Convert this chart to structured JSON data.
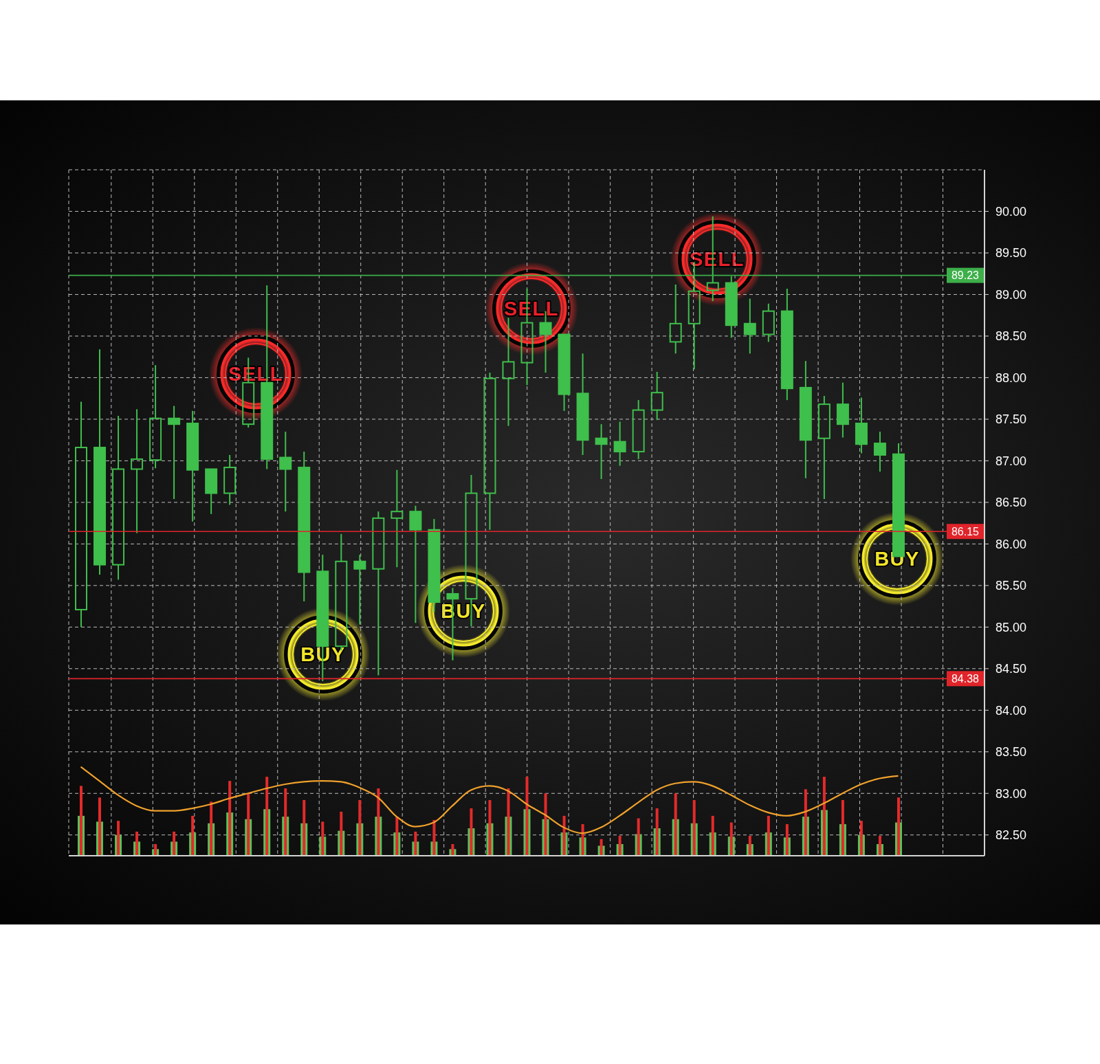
{
  "chart_data": {
    "type": "candlestick",
    "categories": [
      null,
      null,
      null,
      null,
      null,
      null,
      null,
      null,
      null,
      null,
      null,
      null,
      null,
      null,
      null,
      null,
      null,
      null,
      null,
      null,
      null,
      null,
      null,
      null,
      null,
      null,
      null,
      null,
      null,
      null,
      null,
      null,
      null,
      null,
      null,
      null,
      null,
      null,
      null,
      null,
      null,
      null,
      null,
      null,
      null
    ],
    "ohlc": [
      [
        85.21,
        87.71,
        85.0,
        87.16
      ],
      [
        87.16,
        88.34,
        85.63,
        85.75
      ],
      [
        85.75,
        87.54,
        85.57,
        86.9
      ],
      [
        86.9,
        87.62,
        86.13,
        87.02
      ],
      [
        87.01,
        88.15,
        86.91,
        87.51
      ],
      [
        87.51,
        87.66,
        86.54,
        87.44
      ],
      [
        87.45,
        87.6,
        86.27,
        86.89
      ],
      [
        86.9,
        86.9,
        86.36,
        86.61
      ],
      [
        86.61,
        87.07,
        86.47,
        86.92
      ],
      [
        87.44,
        88.24,
        87.4,
        87.94
      ],
      [
        87.94,
        89.11,
        86.9,
        87.02
      ],
      [
        87.04,
        87.35,
        86.39,
        86.9
      ],
      [
        86.92,
        87.11,
        85.31,
        85.66
      ],
      [
        85.67,
        85.87,
        84.35,
        84.77
      ],
      [
        84.77,
        86.12,
        84.72,
        85.79
      ],
      [
        85.79,
        85.87,
        85.03,
        85.7
      ],
      [
        85.7,
        86.39,
        84.42,
        86.31
      ],
      [
        86.31,
        86.89,
        85.72,
        86.39
      ],
      [
        86.39,
        86.46,
        85.05,
        86.17
      ],
      [
        86.17,
        86.3,
        85.18,
        85.3
      ],
      [
        85.4,
        85.47,
        84.6,
        85.34
      ],
      [
        85.34,
        86.83,
        85.01,
        86.61
      ],
      [
        86.61,
        88.06,
        86.17,
        87.99
      ],
      [
        87.99,
        88.72,
        87.42,
        88.19
      ],
      [
        88.18,
        89.07,
        87.91,
        88.66
      ],
      [
        88.66,
        88.8,
        88.06,
        88.52
      ],
      [
        88.52,
        88.52,
        87.6,
        87.8
      ],
      [
        87.81,
        88.29,
        87.07,
        87.25
      ],
      [
        87.27,
        87.44,
        86.78,
        87.2
      ],
      [
        87.23,
        87.47,
        86.94,
        87.11
      ],
      [
        87.11,
        87.73,
        87.02,
        87.61
      ],
      [
        87.61,
        88.07,
        87.49,
        87.82
      ],
      [
        88.43,
        89.12,
        88.29,
        88.65
      ],
      [
        88.65,
        89.39,
        88.1,
        89.04
      ],
      [
        89.05,
        89.94,
        88.92,
        89.14
      ],
      [
        89.14,
        89.22,
        88.48,
        88.63
      ],
      [
        88.65,
        88.95,
        88.29,
        88.52
      ],
      [
        88.52,
        88.89,
        88.43,
        88.8
      ],
      [
        88.8,
        89.07,
        87.73,
        87.87
      ],
      [
        87.88,
        88.2,
        86.79,
        87.25
      ],
      [
        87.27,
        87.78,
        86.54,
        87.68
      ],
      [
        87.68,
        87.94,
        87.28,
        87.44
      ],
      [
        87.45,
        87.76,
        87.09,
        87.2
      ],
      [
        87.21,
        87.35,
        86.87,
        87.07
      ],
      [
        87.08,
        87.21,
        85.85,
        85.85
      ]
    ],
    "color": "#3fbf4c",
    "series": [
      {
        "type": "bar",
        "color": "#5cc05a",
        "values": [
          82.73,
          82.66,
          82.5,
          82.42,
          82.33,
          82.42,
          82.53,
          82.64,
          82.77,
          82.69,
          82.81,
          82.72,
          82.64,
          82.48,
          82.55,
          82.64,
          82.72,
          82.53,
          82.42,
          82.42,
          82.33,
          82.58,
          82.64,
          82.72,
          82.81,
          82.69,
          82.53,
          82.47,
          82.37,
          82.39,
          82.51,
          82.58,
          82.69,
          82.64,
          82.53,
          82.48,
          82.39,
          82.53,
          82.47,
          82.72,
          82.8,
          82.63,
          82.5,
          82.39,
          82.65
        ]
      },
      {
        "type": "bar",
        "color": "#e42a2a",
        "values": [
          83.09,
          82.95,
          82.67,
          82.54,
          82.39,
          82.54,
          82.73,
          82.9,
          83.15,
          83.0,
          83.2,
          83.06,
          82.92,
          82.66,
          82.78,
          82.92,
          83.06,
          82.72,
          82.54,
          82.68,
          82.39,
          82.82,
          82.92,
          83.06,
          83.2,
          83.0,
          82.73,
          82.63,
          82.45,
          82.49,
          82.7,
          82.82,
          83.0,
          82.92,
          82.73,
          82.65,
          82.49,
          82.73,
          82.63,
          83.05,
          83.2,
          82.92,
          82.67,
          82.49,
          82.95
        ]
      },
      {
        "type": "line",
        "color": "#f0a12c",
        "values": [
          83.32,
          83.15,
          82.98,
          82.85,
          82.79,
          82.79,
          82.82,
          82.87,
          82.94,
          83.0,
          83.06,
          83.11,
          83.14,
          83.15,
          83.14,
          83.07,
          82.95,
          82.72,
          82.6,
          82.65,
          82.85,
          83.04,
          83.09,
          83.03,
          82.87,
          82.74,
          82.59,
          82.52,
          82.59,
          82.73,
          82.89,
          83.04,
          83.12,
          83.14,
          83.09,
          82.98,
          82.86,
          82.77,
          82.73,
          82.78,
          82.88,
          83.0,
          83.11,
          83.18,
          83.21
        ]
      }
    ],
    "ylim": [
      82.25,
      90.5
    ],
    "yticks": [
      {
        "value": 82.5,
        "label": "82.50"
      },
      {
        "value": 83,
        "label": "83.00"
      },
      {
        "value": 83.5,
        "label": "83.50"
      },
      {
        "value": 84,
        "label": "84.00"
      },
      {
        "value": 84.5,
        "label": "84.50"
      },
      {
        "value": 85,
        "label": "85.00"
      },
      {
        "value": 85.5,
        "label": "85.50"
      },
      {
        "value": 86,
        "label": "86.00"
      },
      {
        "value": 86.5,
        "label": "86.50"
      },
      {
        "value": 87,
        "label": "87.00"
      },
      {
        "value": 87.5,
        "label": "87.50"
      },
      {
        "value": 88,
        "label": "88.00"
      },
      {
        "value": 88.5,
        "label": "88.50"
      },
      {
        "value": 89,
        "label": "89.00"
      },
      {
        "value": 89.5,
        "label": "89.50"
      },
      {
        "value": 90,
        "label": "90.00"
      }
    ],
    "tick_labels": "y",
    "grid": true,
    "ref_lines": [
      {
        "axis": "y",
        "value": 89.23,
        "label": "89.23",
        "color": "#3daf49"
      },
      {
        "axis": "y",
        "value": 86.15,
        "label": "86.15",
        "color": "#e0242a"
      },
      {
        "axis": "y",
        "value": 84.38,
        "label": "84.38",
        "color": "#e0242a"
      }
    ],
    "annotations": [
      "SELL",
      "BUY",
      "BUY",
      "SELL",
      "SELL",
      "BUY"
    ]
  }
}
